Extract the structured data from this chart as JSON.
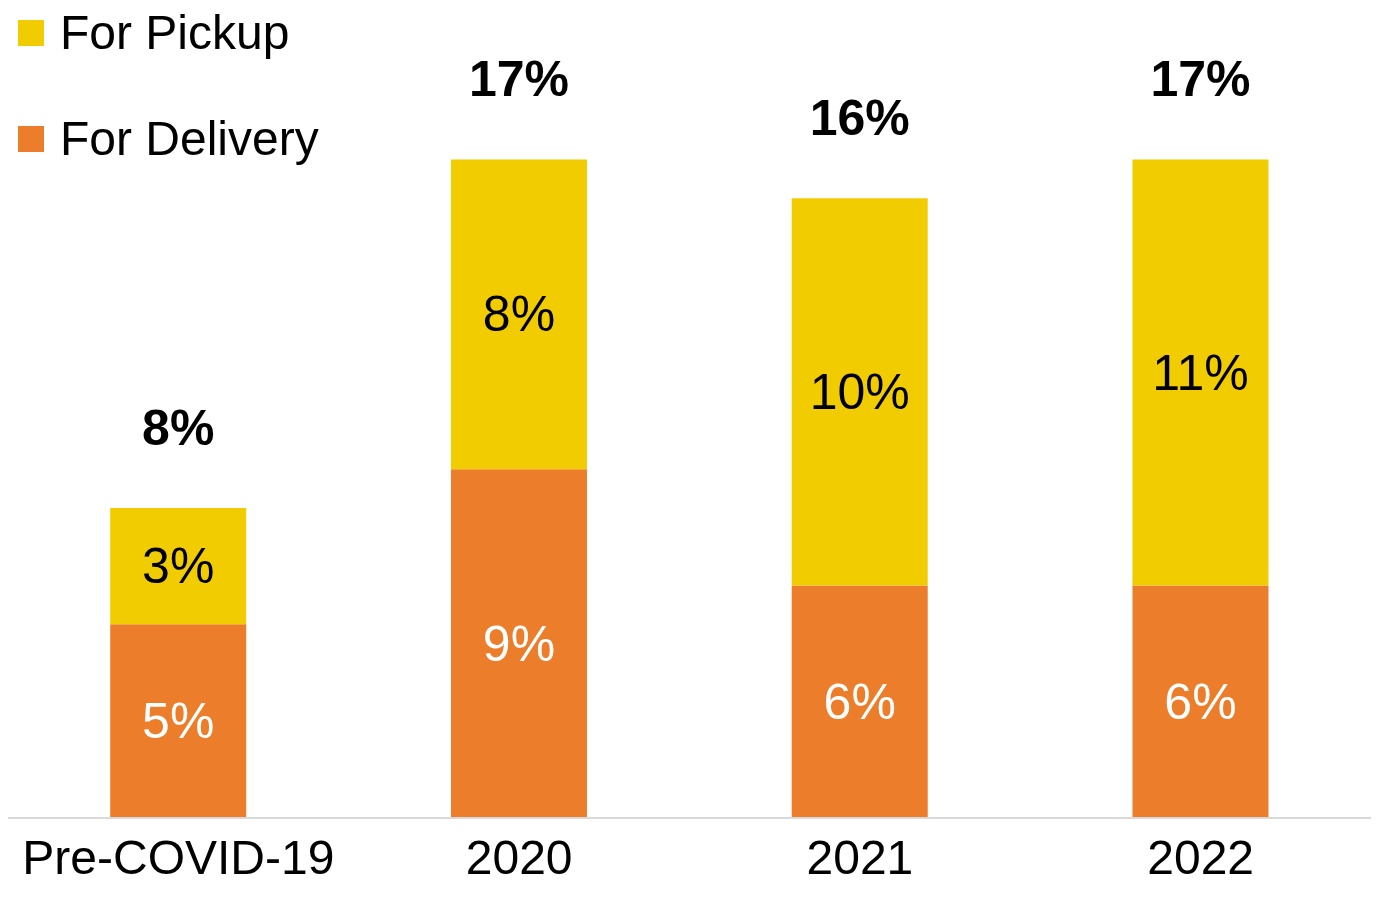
{
  "chart_data": {
    "type": "bar",
    "stacked": true,
    "categories": [
      "Pre-COVID-19",
      "2020",
      "2021",
      "2022"
    ],
    "series": [
      {
        "name": "For Delivery",
        "color": "#ec7d2a",
        "values": [
          5,
          9,
          6,
          6
        ],
        "value_labels": [
          "5%",
          "9%",
          "6%",
          "6%"
        ]
      },
      {
        "name": "For Pickup",
        "color": "#f0cc00",
        "values": [
          3,
          8,
          10,
          11
        ],
        "value_labels": [
          "3%",
          "8%",
          "10%",
          "11%"
        ]
      }
    ],
    "totals": [
      "8%",
      "17%",
      "16%",
      "17%"
    ],
    "legend": "top left",
    "grid": false
  }
}
